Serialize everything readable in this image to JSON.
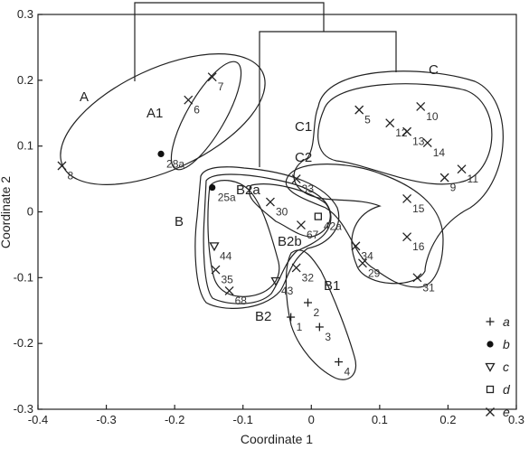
{
  "chart_data": {
    "type": "scatter",
    "xlabel": "Coordinate 1",
    "ylabel": "Coordinate 2",
    "xlim": [
      -0.4,
      0.3
    ],
    "ylim": [
      -0.3,
      0.3
    ],
    "xticks": [
      "-0.4",
      "-0.3",
      "-0.2",
      "-0.1",
      "0",
      "0.1",
      "0.2",
      "0.3"
    ],
    "yticks": [
      "-0.3",
      "-0.2",
      "-0.1",
      "0",
      "0.1",
      "0.2",
      "0.3"
    ],
    "xtick_values": [
      -0.4,
      -0.3,
      -0.2,
      -0.1,
      0,
      0.1,
      0.2,
      0.3
    ],
    "ytick_values": [
      -0.3,
      -0.2,
      -0.1,
      0,
      0.1,
      0.2,
      0.3
    ],
    "grid": false,
    "legend_position": "bottom-right",
    "legend": [
      {
        "marker": "plus",
        "label": "a"
      },
      {
        "marker": "dot",
        "label": "b"
      },
      {
        "marker": "triangle",
        "label": "c"
      },
      {
        "marker": "square",
        "label": "d"
      },
      {
        "marker": "cross",
        "label": "e"
      }
    ],
    "points": [
      {
        "label": "8",
        "type": "cross",
        "x": -0.365,
        "y": 0.07
      },
      {
        "label": "7",
        "type": "cross",
        "x": -0.145,
        "y": 0.205
      },
      {
        "label": "6",
        "type": "cross",
        "x": -0.18,
        "y": 0.17
      },
      {
        "label": "28a",
        "type": "dot",
        "x": -0.22,
        "y": 0.088
      },
      {
        "label": "5",
        "type": "cross",
        "x": 0.07,
        "y": 0.155
      },
      {
        "label": "12",
        "type": "cross",
        "x": 0.115,
        "y": 0.135
      },
      {
        "label": "10",
        "type": "cross",
        "x": 0.16,
        "y": 0.16
      },
      {
        "label": "13",
        "type": "cross",
        "x": 0.14,
        "y": 0.122
      },
      {
        "label": "14",
        "type": "cross",
        "x": 0.17,
        "y": 0.105
      },
      {
        "label": "11",
        "type": "cross",
        "x": 0.22,
        "y": 0.065
      },
      {
        "label": "9",
        "type": "cross",
        "x": 0.195,
        "y": 0.052
      },
      {
        "label": "33",
        "type": "cross",
        "x": -0.022,
        "y": 0.05
      },
      {
        "label": "15",
        "type": "cross",
        "x": 0.14,
        "y": 0.02
      },
      {
        "label": "16",
        "type": "cross",
        "x": 0.14,
        "y": -0.038
      },
      {
        "label": "34",
        "type": "cross",
        "x": 0.065,
        "y": -0.052
      },
      {
        "label": "29",
        "type": "cross",
        "x": 0.075,
        "y": -0.078
      },
      {
        "label": "31",
        "type": "cross",
        "x": 0.155,
        "y": -0.1
      },
      {
        "label": "25a",
        "type": "dot",
        "x": -0.145,
        "y": 0.037
      },
      {
        "label": "30",
        "type": "cross",
        "x": -0.06,
        "y": 0.015
      },
      {
        "label": "42a",
        "type": "square",
        "x": 0.01,
        "y": -0.007
      },
      {
        "label": "67",
        "type": "cross",
        "x": -0.015,
        "y": -0.02
      },
      {
        "label": "44",
        "type": "triangle",
        "x": -0.142,
        "y": -0.052
      },
      {
        "label": "35",
        "type": "cross",
        "x": -0.14,
        "y": -0.088
      },
      {
        "label": "43",
        "type": "triangle",
        "x": -0.052,
        "y": -0.105
      },
      {
        "label": "68",
        "type": "cross",
        "x": -0.12,
        "y": -0.12
      },
      {
        "label": "32",
        "type": "cross",
        "x": -0.022,
        "y": -0.085
      },
      {
        "label": "1",
        "type": "plus",
        "x": -0.03,
        "y": -0.16
      },
      {
        "label": "2",
        "type": "plus",
        "x": -0.005,
        "y": -0.138
      },
      {
        "label": "3",
        "type": "plus",
        "x": 0.012,
        "y": -0.175
      },
      {
        "label": "4",
        "type": "plus",
        "x": 0.04,
        "y": -0.228
      }
    ],
    "group_labels": [
      "A",
      "A1",
      "B",
      "B2a",
      "B2b",
      "B1",
      "B2",
      "C",
      "C1",
      "C2"
    ],
    "dendrogram": "upper"
  }
}
